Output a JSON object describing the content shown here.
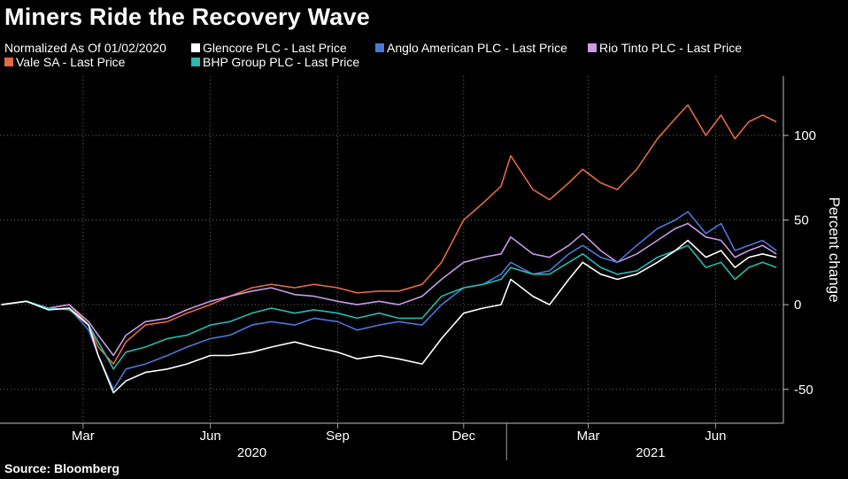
{
  "title": "Miners Ride the Recovery Wave",
  "source": "Source: Bloomberg",
  "legend": {
    "note": "Normalized As Of 01/02/2020",
    "items": [
      {
        "label": "Glencore PLC - Last Price",
        "color": "#ffffff"
      },
      {
        "label": "Anglo American PLC - Last Price",
        "color": "#4a78d8"
      },
      {
        "label": "Rio Tinto PLC - Last Price",
        "color": "#c89ae8"
      },
      {
        "label": "Vale SA - Last Price",
        "color": "#e46a43"
      },
      {
        "label": "BHP Group PLC - Last Price",
        "color": "#2ab8b0"
      }
    ]
  },
  "chart_data": {
    "type": "line",
    "title": "Miners Ride the Recovery Wave",
    "ylabel": "Percent change",
    "ylim": [
      -70,
      135
    ],
    "yticks": [
      -50,
      0,
      50,
      100
    ],
    "xlim": [
      "2020-01-01",
      "2021-07-20"
    ],
    "x_ticks": [
      {
        "date": "2020-03-01",
        "label": "Mar"
      },
      {
        "date": "2020-06-01",
        "label": "Jun"
      },
      {
        "date": "2020-09-01",
        "label": "Sep"
      },
      {
        "date": "2020-12-01",
        "label": "Dec"
      },
      {
        "date": "2021-03-01",
        "label": "Mar"
      },
      {
        "date": "2021-06-01",
        "label": "Jun"
      }
    ],
    "year_labels": [
      {
        "label": "2020",
        "date": "2020-07-01"
      },
      {
        "label": "2021",
        "date": "2021-04-15"
      }
    ],
    "year_divider": "2021-01-01",
    "grid": true,
    "legend_position": "top",
    "series": [
      {
        "name": "Vale SA - Last Price",
        "color": "#e46a43",
        "points": [
          [
            "2020-01-02",
            0
          ],
          [
            "2020-01-20",
            2
          ],
          [
            "2020-02-05",
            -2
          ],
          [
            "2020-02-20",
            0
          ],
          [
            "2020-03-05",
            -12
          ],
          [
            "2020-03-12",
            -25
          ],
          [
            "2020-03-23",
            -35
          ],
          [
            "2020-04-01",
            -22
          ],
          [
            "2020-04-15",
            -12
          ],
          [
            "2020-05-01",
            -10
          ],
          [
            "2020-05-15",
            -5
          ],
          [
            "2020-06-01",
            0
          ],
          [
            "2020-06-15",
            5
          ],
          [
            "2020-07-01",
            10
          ],
          [
            "2020-07-15",
            12
          ],
          [
            "2020-08-01",
            10
          ],
          [
            "2020-08-15",
            12
          ],
          [
            "2020-09-01",
            10
          ],
          [
            "2020-09-15",
            7
          ],
          [
            "2020-10-01",
            8
          ],
          [
            "2020-10-15",
            8
          ],
          [
            "2020-11-01",
            12
          ],
          [
            "2020-11-15",
            25
          ],
          [
            "2020-12-01",
            50
          ],
          [
            "2020-12-15",
            60
          ],
          [
            "2020-12-28",
            70
          ],
          [
            "2021-01-04",
            88
          ],
          [
            "2021-01-20",
            68
          ],
          [
            "2021-02-01",
            62
          ],
          [
            "2021-02-15",
            72
          ],
          [
            "2021-02-25",
            80
          ],
          [
            "2021-03-10",
            72
          ],
          [
            "2021-03-22",
            68
          ],
          [
            "2021-04-05",
            80
          ],
          [
            "2021-04-20",
            98
          ],
          [
            "2021-05-03",
            110
          ],
          [
            "2021-05-12",
            118
          ],
          [
            "2021-05-25",
            100
          ],
          [
            "2021-06-05",
            112
          ],
          [
            "2021-06-15",
            98
          ],
          [
            "2021-06-25",
            108
          ],
          [
            "2021-07-05",
            112
          ],
          [
            "2021-07-15",
            108
          ]
        ]
      },
      {
        "name": "Rio Tinto PLC - Last Price",
        "color": "#c89ae8",
        "points": [
          [
            "2020-01-02",
            0
          ],
          [
            "2020-01-20",
            2
          ],
          [
            "2020-02-05",
            -2
          ],
          [
            "2020-02-20",
            0
          ],
          [
            "2020-03-05",
            -10
          ],
          [
            "2020-03-12",
            -18
          ],
          [
            "2020-03-23",
            -30
          ],
          [
            "2020-04-01",
            -18
          ],
          [
            "2020-04-15",
            -10
          ],
          [
            "2020-05-01",
            -8
          ],
          [
            "2020-05-15",
            -3
          ],
          [
            "2020-06-01",
            2
          ],
          [
            "2020-06-15",
            5
          ],
          [
            "2020-07-01",
            8
          ],
          [
            "2020-07-15",
            10
          ],
          [
            "2020-08-01",
            6
          ],
          [
            "2020-08-15",
            5
          ],
          [
            "2020-09-01",
            2
          ],
          [
            "2020-09-15",
            0
          ],
          [
            "2020-10-01",
            2
          ],
          [
            "2020-10-15",
            0
          ],
          [
            "2020-11-01",
            5
          ],
          [
            "2020-11-15",
            15
          ],
          [
            "2020-12-01",
            25
          ],
          [
            "2020-12-15",
            28
          ],
          [
            "2020-12-28",
            30
          ],
          [
            "2021-01-04",
            40
          ],
          [
            "2021-01-20",
            30
          ],
          [
            "2021-02-01",
            28
          ],
          [
            "2021-02-15",
            35
          ],
          [
            "2021-02-25",
            42
          ],
          [
            "2021-03-10",
            32
          ],
          [
            "2021-03-22",
            25
          ],
          [
            "2021-04-05",
            30
          ],
          [
            "2021-04-20",
            38
          ],
          [
            "2021-05-03",
            45
          ],
          [
            "2021-05-12",
            48
          ],
          [
            "2021-05-25",
            40
          ],
          [
            "2021-06-05",
            38
          ],
          [
            "2021-06-15",
            28
          ],
          [
            "2021-06-25",
            32
          ],
          [
            "2021-07-05",
            35
          ],
          [
            "2021-07-15",
            30
          ]
        ]
      },
      {
        "name": "Anglo American PLC - Last Price",
        "color": "#4a78d8",
        "points": [
          [
            "2020-01-02",
            0
          ],
          [
            "2020-01-20",
            2
          ],
          [
            "2020-02-05",
            -3
          ],
          [
            "2020-02-20",
            -2
          ],
          [
            "2020-03-05",
            -15
          ],
          [
            "2020-03-12",
            -30
          ],
          [
            "2020-03-23",
            -50
          ],
          [
            "2020-04-01",
            -38
          ],
          [
            "2020-04-15",
            -35
          ],
          [
            "2020-05-01",
            -30
          ],
          [
            "2020-05-15",
            -25
          ],
          [
            "2020-06-01",
            -20
          ],
          [
            "2020-06-15",
            -18
          ],
          [
            "2020-07-01",
            -12
          ],
          [
            "2020-07-15",
            -10
          ],
          [
            "2020-08-01",
            -12
          ],
          [
            "2020-08-15",
            -8
          ],
          [
            "2020-09-01",
            -10
          ],
          [
            "2020-09-15",
            -15
          ],
          [
            "2020-10-01",
            -12
          ],
          [
            "2020-10-15",
            -10
          ],
          [
            "2020-11-01",
            -12
          ],
          [
            "2020-11-15",
            0
          ],
          [
            "2020-12-01",
            10
          ],
          [
            "2020-12-15",
            12
          ],
          [
            "2020-12-28",
            18
          ],
          [
            "2021-01-04",
            25
          ],
          [
            "2021-01-20",
            18
          ],
          [
            "2021-02-01",
            20
          ],
          [
            "2021-02-15",
            30
          ],
          [
            "2021-02-25",
            35
          ],
          [
            "2021-03-10",
            28
          ],
          [
            "2021-03-22",
            25
          ],
          [
            "2021-04-05",
            35
          ],
          [
            "2021-04-20",
            45
          ],
          [
            "2021-05-03",
            50
          ],
          [
            "2021-05-12",
            55
          ],
          [
            "2021-05-25",
            42
          ],
          [
            "2021-06-05",
            48
          ],
          [
            "2021-06-15",
            32
          ],
          [
            "2021-06-25",
            35
          ],
          [
            "2021-07-05",
            38
          ],
          [
            "2021-07-15",
            32
          ]
        ]
      },
      {
        "name": "BHP Group PLC - Last Price",
        "color": "#2ab8b0",
        "points": [
          [
            "2020-01-02",
            0
          ],
          [
            "2020-01-20",
            2
          ],
          [
            "2020-02-05",
            -2
          ],
          [
            "2020-02-20",
            -3
          ],
          [
            "2020-03-05",
            -12
          ],
          [
            "2020-03-12",
            -22
          ],
          [
            "2020-03-23",
            -38
          ],
          [
            "2020-04-01",
            -28
          ],
          [
            "2020-04-15",
            -25
          ],
          [
            "2020-05-01",
            -20
          ],
          [
            "2020-05-15",
            -18
          ],
          [
            "2020-06-01",
            -12
          ],
          [
            "2020-06-15",
            -10
          ],
          [
            "2020-07-01",
            -5
          ],
          [
            "2020-07-15",
            -2
          ],
          [
            "2020-08-01",
            -5
          ],
          [
            "2020-08-15",
            -3
          ],
          [
            "2020-09-01",
            -5
          ],
          [
            "2020-09-15",
            -8
          ],
          [
            "2020-10-01",
            -5
          ],
          [
            "2020-10-15",
            -8
          ],
          [
            "2020-11-01",
            -8
          ],
          [
            "2020-11-15",
            5
          ],
          [
            "2020-12-01",
            10
          ],
          [
            "2020-12-15",
            12
          ],
          [
            "2020-12-28",
            15
          ],
          [
            "2021-01-04",
            22
          ],
          [
            "2021-01-20",
            18
          ],
          [
            "2021-02-01",
            18
          ],
          [
            "2021-02-15",
            25
          ],
          [
            "2021-02-25",
            30
          ],
          [
            "2021-03-10",
            22
          ],
          [
            "2021-03-22",
            18
          ],
          [
            "2021-04-05",
            20
          ],
          [
            "2021-04-20",
            28
          ],
          [
            "2021-05-03",
            32
          ],
          [
            "2021-05-12",
            35
          ],
          [
            "2021-05-25",
            22
          ],
          [
            "2021-06-05",
            25
          ],
          [
            "2021-06-15",
            15
          ],
          [
            "2021-06-25",
            22
          ],
          [
            "2021-07-05",
            25
          ],
          [
            "2021-07-15",
            22
          ]
        ]
      },
      {
        "name": "Glencore PLC - Last Price",
        "color": "#ffffff",
        "points": [
          [
            "2020-01-02",
            0
          ],
          [
            "2020-01-20",
            2
          ],
          [
            "2020-02-05",
            -3
          ],
          [
            "2020-02-20",
            -2
          ],
          [
            "2020-03-05",
            -12
          ],
          [
            "2020-03-12",
            -30
          ],
          [
            "2020-03-23",
            -52
          ],
          [
            "2020-04-01",
            -45
          ],
          [
            "2020-04-15",
            -40
          ],
          [
            "2020-05-01",
            -38
          ],
          [
            "2020-05-15",
            -35
          ],
          [
            "2020-06-01",
            -30
          ],
          [
            "2020-06-15",
            -30
          ],
          [
            "2020-07-01",
            -28
          ],
          [
            "2020-07-15",
            -25
          ],
          [
            "2020-08-01",
            -22
          ],
          [
            "2020-08-15",
            -25
          ],
          [
            "2020-09-01",
            -28
          ],
          [
            "2020-09-15",
            -32
          ],
          [
            "2020-10-01",
            -30
          ],
          [
            "2020-10-15",
            -32
          ],
          [
            "2020-11-01",
            -35
          ],
          [
            "2020-11-15",
            -20
          ],
          [
            "2020-12-01",
            -5
          ],
          [
            "2020-12-15",
            -2
          ],
          [
            "2020-12-28",
            0
          ],
          [
            "2021-01-04",
            15
          ],
          [
            "2021-01-20",
            5
          ],
          [
            "2021-02-01",
            0
          ],
          [
            "2021-02-15",
            15
          ],
          [
            "2021-02-25",
            25
          ],
          [
            "2021-03-10",
            18
          ],
          [
            "2021-03-22",
            15
          ],
          [
            "2021-04-05",
            18
          ],
          [
            "2021-04-20",
            25
          ],
          [
            "2021-05-03",
            32
          ],
          [
            "2021-05-12",
            38
          ],
          [
            "2021-05-25",
            28
          ],
          [
            "2021-06-05",
            32
          ],
          [
            "2021-06-15",
            22
          ],
          [
            "2021-06-25",
            28
          ],
          [
            "2021-07-05",
            30
          ],
          [
            "2021-07-15",
            28
          ]
        ]
      }
    ]
  }
}
